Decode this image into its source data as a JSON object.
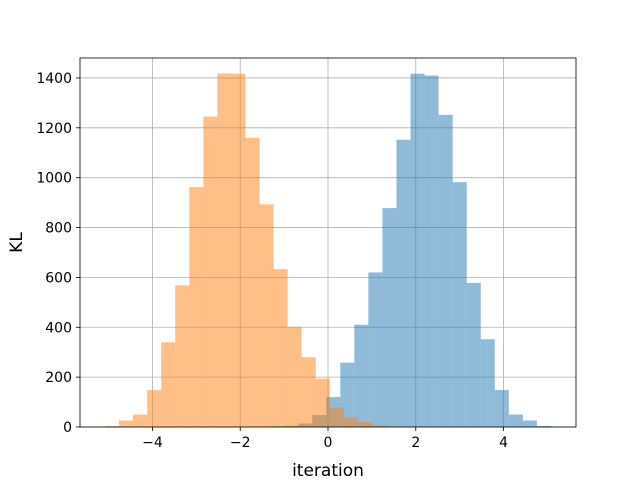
{
  "chart_data": {
    "type": "bar",
    "xlabel": "iteration",
    "ylabel": "KL",
    "xlim": [
      -5.65,
      5.65
    ],
    "ylim": [
      0,
      1480
    ],
    "grid": true,
    "x_ticks": [
      -4,
      -2,
      0,
      2,
      4
    ],
    "x_tick_labels": [
      "−4",
      "−2",
      "0",
      "2",
      "4"
    ],
    "y_ticks": [
      0,
      200,
      400,
      600,
      800,
      1000,
      1200,
      1400
    ],
    "y_tick_labels": [
      "0",
      "200",
      "400",
      "600",
      "800",
      "1000",
      "1200",
      "1400"
    ],
    "series": [
      {
        "color": "#1f77b4",
        "opacity": 0.5,
        "bin_edges": [
          -1.32,
          -1.0,
          -0.68,
          -0.36,
          -0.04,
          0.28,
          0.6,
          0.92,
          1.24,
          1.56,
          1.88,
          2.2,
          2.52,
          2.84,
          3.16,
          3.48,
          3.8,
          4.12,
          4.44,
          4.76,
          5.08
        ],
        "counts": [
          3,
          5,
          14,
          48,
          120,
          258,
          410,
          620,
          878,
          1152,
          1417,
          1410,
          1252,
          982,
          578,
          352,
          148,
          50,
          26,
          4
        ]
      },
      {
        "color": "#ff7f0e",
        "opacity": 0.5,
        "bin_edges": [
          -5.08,
          -4.76,
          -4.44,
          -4.12,
          -3.8,
          -3.48,
          -3.16,
          -2.84,
          -2.52,
          -2.2,
          -1.88,
          -1.56,
          -1.24,
          -0.92,
          -0.6,
          -0.28,
          0.04,
          0.36,
          0.68,
          1.0,
          1.32
        ],
        "counts": [
          4,
          26,
          50,
          148,
          340,
          568,
          962,
          1245,
          1418,
          1417,
          1160,
          893,
          633,
          402,
          280,
          194,
          78,
          38,
          20,
          7
        ]
      }
    ]
  }
}
